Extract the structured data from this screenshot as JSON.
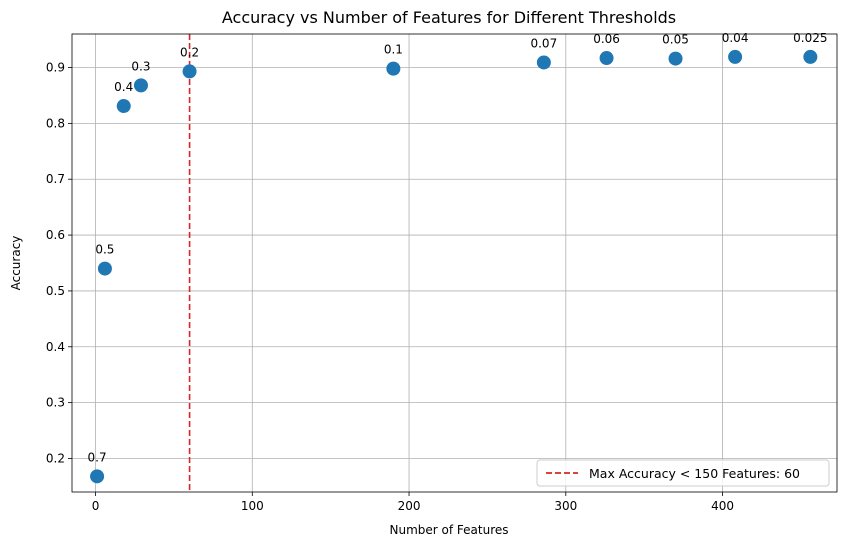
{
  "chart_data": {
    "type": "scatter",
    "title": "Accuracy vs Number of Features for Different Thresholds",
    "xlabel": "Number of Features",
    "ylabel": "Accuracy",
    "xlim": [
      -15,
      473
    ],
    "ylim": [
      0.14,
      0.96
    ],
    "xticks": [
      0,
      100,
      200,
      300,
      400
    ],
    "yticks": [
      0.2,
      0.3,
      0.4,
      0.5,
      0.6,
      0.7,
      0.8,
      0.9
    ],
    "grid": true,
    "points": [
      {
        "x": 1,
        "y": 0.168,
        "label": "0.7"
      },
      {
        "x": 6,
        "y": 0.54,
        "label": "0.5"
      },
      {
        "x": 18,
        "y": 0.831,
        "label": "0.4"
      },
      {
        "x": 29,
        "y": 0.868,
        "label": "0.3"
      },
      {
        "x": 60,
        "y": 0.893,
        "label": "0.2"
      },
      {
        "x": 190,
        "y": 0.898,
        "label": "0.1"
      },
      {
        "x": 286,
        "y": 0.909,
        "label": "0.07"
      },
      {
        "x": 326,
        "y": 0.917,
        "label": "0.06"
      },
      {
        "x": 370,
        "y": 0.916,
        "label": "0.05"
      },
      {
        "x": 408,
        "y": 0.919,
        "label": "0.04"
      },
      {
        "x": 456,
        "y": 0.919,
        "label": "0.025"
      }
    ],
    "reference_line": {
      "orientation": "vertical",
      "x": 60,
      "style": "dashed",
      "color": "#d62728",
      "label": "Max Accuracy < 150 Features: 60"
    },
    "legend_position": "bottom-right",
    "marker_color": "#1f77b4"
  }
}
